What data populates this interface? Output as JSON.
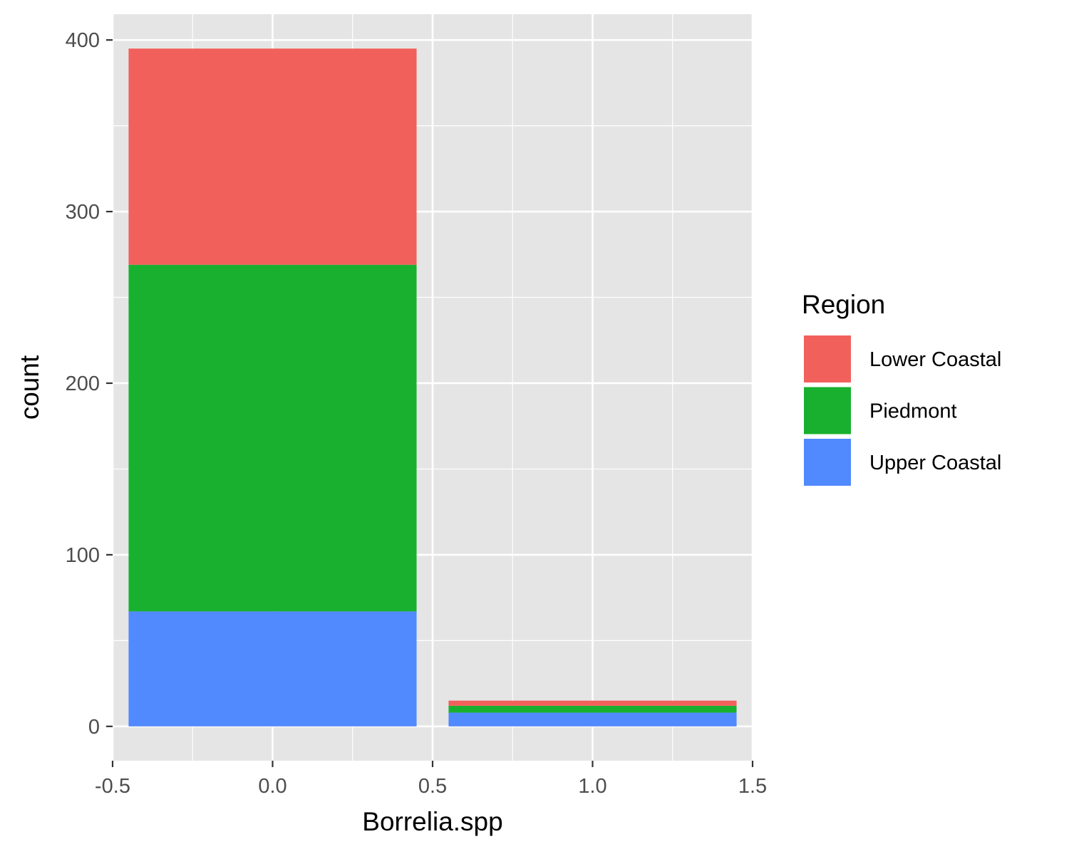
{
  "chart_data": {
    "type": "bar",
    "stacked": true,
    "xlabel": "Borrelia.spp",
    "ylabel": "count",
    "x": [
      0,
      1
    ],
    "bar_width": 0.9,
    "xlim": [
      -0.5,
      1.5
    ],
    "ylim": [
      -20,
      415
    ],
    "x_ticks": [
      -0.5,
      0.0,
      0.5,
      1.0,
      1.5
    ],
    "x_tick_labels": [
      "-0.5",
      "0.0",
      "0.5",
      "1.0",
      "1.5"
    ],
    "y_ticks": [
      0,
      100,
      200,
      300,
      400
    ],
    "y_tick_labels": [
      "0",
      "100",
      "200",
      "300",
      "400"
    ],
    "grid": true,
    "background": "#e5e5e5",
    "legend": {
      "title": "Region",
      "placement": "right"
    },
    "series": [
      {
        "name": "Upper Coastal",
        "color": "#518afe",
        "values": [
          67,
          8
        ]
      },
      {
        "name": "Piedmont",
        "color": "#19b02f",
        "values": [
          202,
          4
        ]
      },
      {
        "name": "Lower Coastal",
        "color": "#f2605c",
        "values": [
          126,
          3
        ]
      }
    ]
  }
}
